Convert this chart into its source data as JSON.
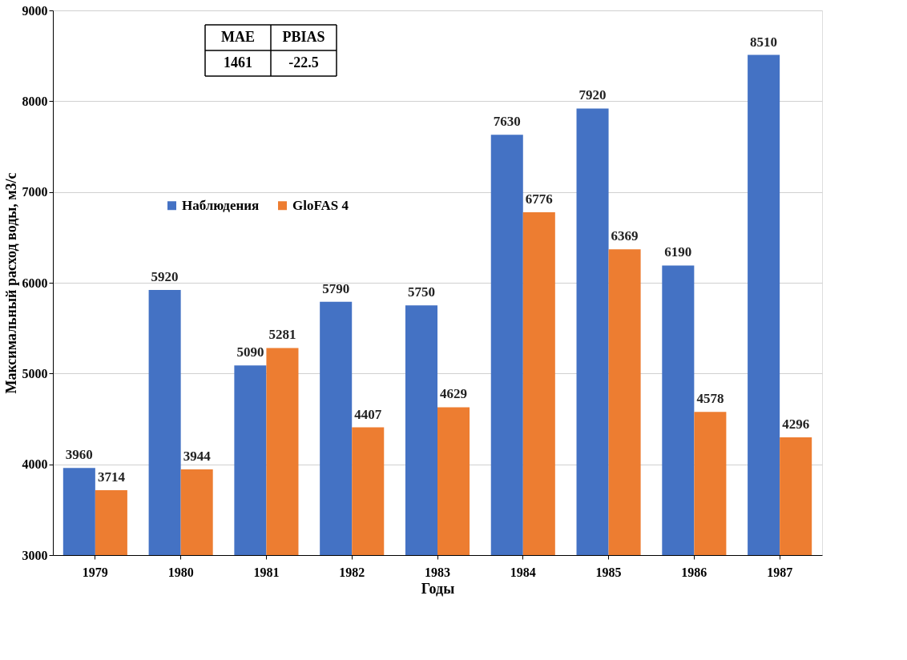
{
  "chart_data": {
    "type": "bar",
    "xlabel": "Годы",
    "ylabel": "Максимальный расход воды, м3/с",
    "categories": [
      "1979",
      "1980",
      "1981",
      "1982",
      "1983",
      "1984",
      "1985",
      "1986",
      "1987"
    ],
    "series": [
      {
        "name": "Наблюдения",
        "color": "#4472c4",
        "values": [
          3960,
          5920,
          5090,
          5790,
          5750,
          7630,
          7920,
          6190,
          8510
        ]
      },
      {
        "name": "GloFAS 4",
        "color": "#ed7d31",
        "values": [
          3714,
          3944,
          5281,
          4407,
          4629,
          6776,
          6369,
          4578,
          4296
        ]
      }
    ],
    "ylim": [
      3000,
      9000
    ],
    "yticks": [
      3000,
      4000,
      5000,
      6000,
      7000,
      8000,
      9000
    ],
    "grid": "y",
    "legend": "left",
    "data_labels": true,
    "annotations": [
      "MAE",
      "PBIAS",
      "1461",
      "-22.5"
    ]
  }
}
